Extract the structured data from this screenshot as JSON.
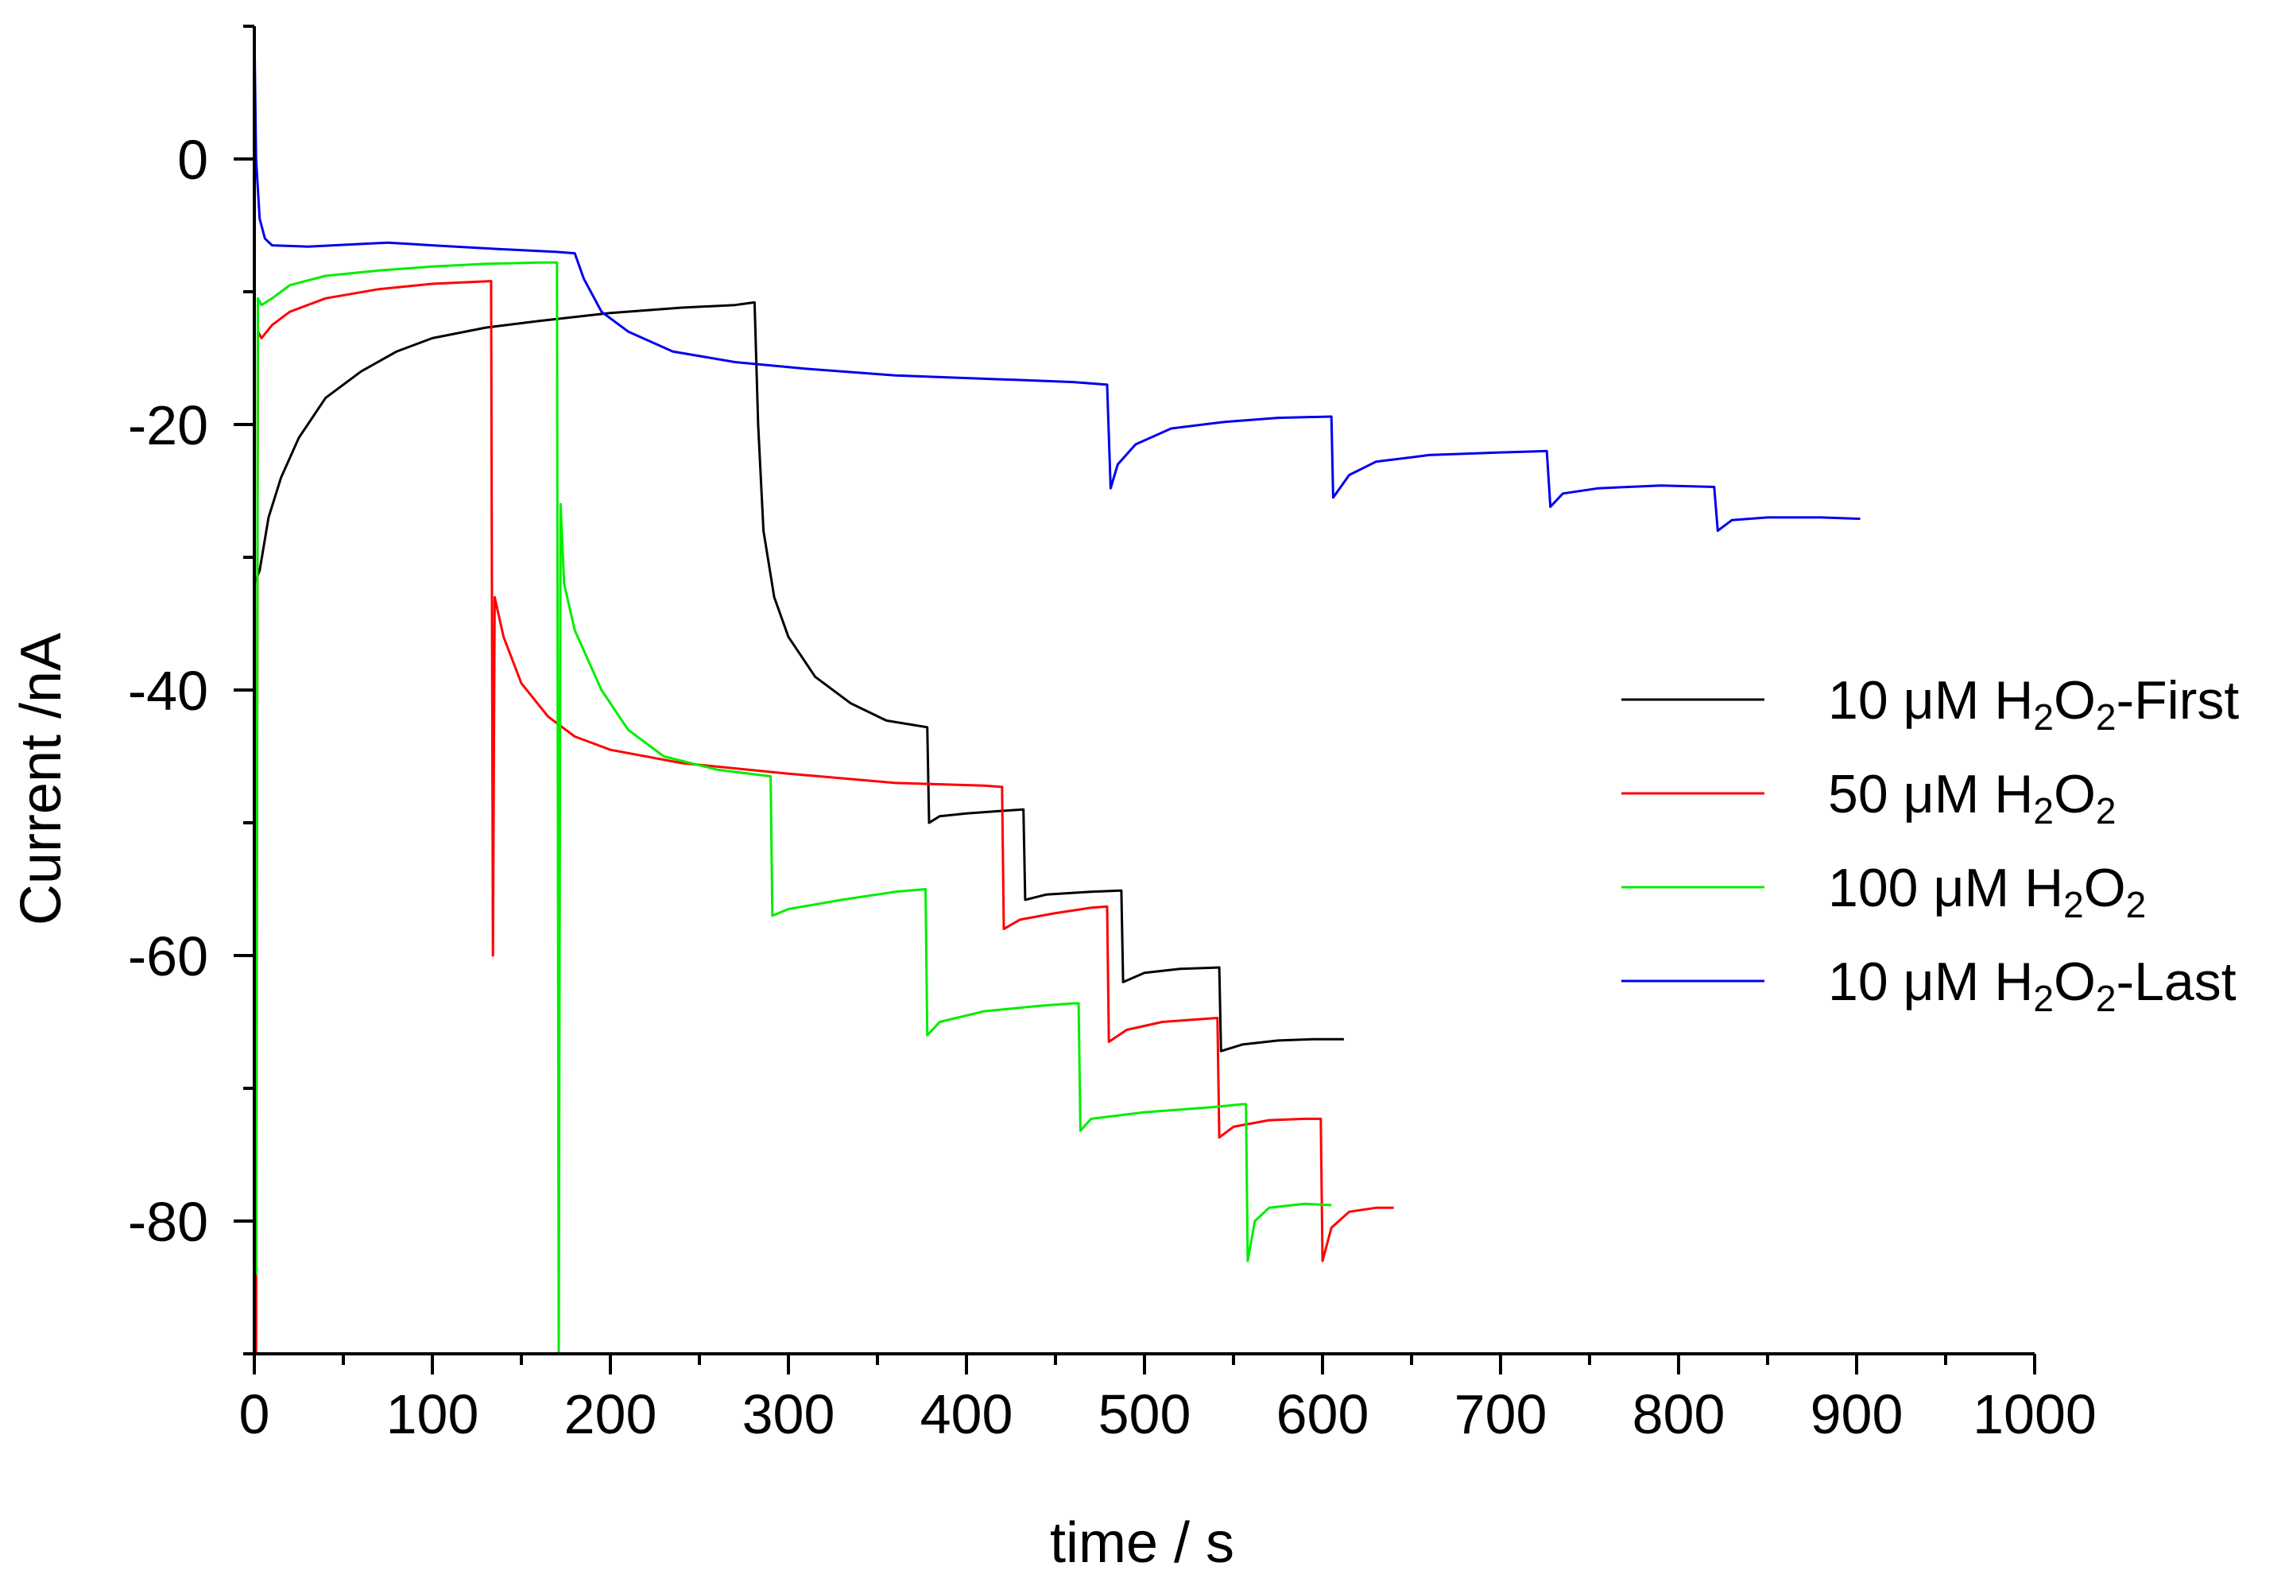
{
  "chart_data": {
    "type": "line",
    "title": "",
    "xlabel": "time / s",
    "ylabel": "Current /nA",
    "xlim": [
      0,
      1000
    ],
    "ylim": [
      -90,
      10
    ],
    "x_ticks": [
      0,
      100,
      200,
      300,
      400,
      500,
      600,
      700,
      800,
      900,
      1000
    ],
    "x_minor_step": 50,
    "y_ticks": [
      0,
      -20,
      -40,
      -60,
      -80
    ],
    "y_minor_step": 10,
    "grid": false,
    "legend_position": "right",
    "series": [
      {
        "name": "10 μM H2O2-First",
        "legend": {
          "a": "10 μM H",
          "s1": "2",
          "b": "O",
          "s2": "2",
          "c": "-First"
        },
        "color": "#000000",
        "points": [
          [
            0,
            -32
          ],
          [
            3,
            -31
          ],
          [
            8,
            -27
          ],
          [
            15,
            -24
          ],
          [
            25,
            -21
          ],
          [
            40,
            -18
          ],
          [
            60,
            -16
          ],
          [
            80,
            -14.5
          ],
          [
            100,
            -13.5
          ],
          [
            130,
            -12.7
          ],
          [
            160,
            -12.2
          ],
          [
            200,
            -11.6
          ],
          [
            240,
            -11.2
          ],
          [
            270,
            -11
          ],
          [
            281,
            -10.8
          ],
          [
            283,
            -20
          ],
          [
            286,
            -28
          ],
          [
            292,
            -33
          ],
          [
            300,
            -36
          ],
          [
            315,
            -39
          ],
          [
            335,
            -41
          ],
          [
            355,
            -42.3
          ],
          [
            378,
            -42.8
          ],
          [
            379,
            -50
          ],
          [
            385,
            -49.5
          ],
          [
            400,
            -49.3
          ],
          [
            420,
            -49.1
          ],
          [
            432,
            -49
          ],
          [
            433,
            -55.8
          ],
          [
            445,
            -55.4
          ],
          [
            470,
            -55.2
          ],
          [
            487,
            -55.1
          ],
          [
            488,
            -62
          ],
          [
            500,
            -61.3
          ],
          [
            520,
            -61
          ],
          [
            542,
            -60.9
          ],
          [
            543,
            -67.2
          ],
          [
            555,
            -66.7
          ],
          [
            575,
            -66.4
          ],
          [
            595,
            -66.3
          ],
          [
            612,
            -66.3
          ]
        ]
      },
      {
        "name": "50 μM H2O2",
        "legend": {
          "a": "50 μM H",
          "s1": "2",
          "b": "O",
          "s2": "2",
          "c": ""
        },
        "color": "#ff0000",
        "points": [
          [
            0,
            -84
          ],
          [
            1,
            -90
          ],
          [
            2,
            -13
          ],
          [
            4,
            -13.5
          ],
          [
            10,
            -12.5
          ],
          [
            20,
            -11.5
          ],
          [
            40,
            -10.5
          ],
          [
            70,
            -9.8
          ],
          [
            100,
            -9.4
          ],
          [
            133,
            -9.2
          ],
          [
            134,
            -60
          ],
          [
            135,
            -33
          ],
          [
            140,
            -36
          ],
          [
            150,
            -39.5
          ],
          [
            165,
            -42
          ],
          [
            180,
            -43.5
          ],
          [
            200,
            -44.5
          ],
          [
            240,
            -45.5
          ],
          [
            300,
            -46.3
          ],
          [
            360,
            -47
          ],
          [
            410,
            -47.2
          ],
          [
            420,
            -47.3
          ],
          [
            421,
            -58
          ],
          [
            430,
            -57.3
          ],
          [
            450,
            -56.8
          ],
          [
            470,
            -56.4
          ],
          [
            479,
            -56.3
          ],
          [
            480,
            -66.5
          ],
          [
            490,
            -65.6
          ],
          [
            510,
            -65
          ],
          [
            530,
            -64.8
          ],
          [
            541,
            -64.7
          ],
          [
            542,
            -73.7
          ],
          [
            550,
            -72.9
          ],
          [
            570,
            -72.4
          ],
          [
            590,
            -72.3
          ],
          [
            599,
            -72.3
          ],
          [
            600,
            -83
          ],
          [
            605,
            -80.5
          ],
          [
            615,
            -79.3
          ],
          [
            630,
            -79
          ],
          [
            640,
            -79
          ]
        ]
      },
      {
        "name": "100 μM H2O2",
        "legend": {
          "a": "100 μM H",
          "s1": "2",
          "b": "O",
          "s2": "2",
          "c": ""
        },
        "color": "#00ee00",
        "points": [
          [
            0,
            -27
          ],
          [
            1,
            -84
          ],
          [
            2,
            -10.5
          ],
          [
            4,
            -11
          ],
          [
            10,
            -10.5
          ],
          [
            20,
            -9.5
          ],
          [
            40,
            -8.8
          ],
          [
            70,
            -8.4
          ],
          [
            100,
            -8.1
          ],
          [
            130,
            -7.9
          ],
          [
            160,
            -7.8
          ],
          [
            170,
            -7.8
          ],
          [
            171,
            -90
          ],
          [
            172,
            -26
          ],
          [
            174,
            -32
          ],
          [
            180,
            -35.5
          ],
          [
            195,
            -40
          ],
          [
            210,
            -43
          ],
          [
            230,
            -45
          ],
          [
            260,
            -46
          ],
          [
            290,
            -46.5
          ],
          [
            291,
            -57
          ],
          [
            300,
            -56.5
          ],
          [
            330,
            -55.8
          ],
          [
            360,
            -55.2
          ],
          [
            377,
            -55
          ],
          [
            378,
            -66
          ],
          [
            385,
            -65
          ],
          [
            410,
            -64.2
          ],
          [
            440,
            -63.8
          ],
          [
            460,
            -63.6
          ],
          [
            463,
            -63.6
          ],
          [
            464,
            -73.2
          ],
          [
            470,
            -72.3
          ],
          [
            500,
            -71.8
          ],
          [
            540,
            -71.4
          ],
          [
            555,
            -71.2
          ],
          [
            557,
            -71.2
          ],
          [
            558,
            -83
          ],
          [
            562,
            -80
          ],
          [
            570,
            -79
          ],
          [
            590,
            -78.7
          ],
          [
            605,
            -78.8
          ]
        ]
      },
      {
        "name": "10 μM H2O2-Last",
        "legend": {
          "a": "10 μM H",
          "s1": "2",
          "b": "O",
          "s2": "2",
          "c": "-Last"
        },
        "color": "#0000ee",
        "points": [
          [
            0,
            10
          ],
          [
            1,
            0
          ],
          [
            3,
            -4.5
          ],
          [
            6,
            -6
          ],
          [
            10,
            -6.5
          ],
          [
            30,
            -6.6
          ],
          [
            60,
            -6.4
          ],
          [
            75,
            -6.3
          ],
          [
            100,
            -6.5
          ],
          [
            140,
            -6.8
          ],
          [
            170,
            -7
          ],
          [
            180,
            -7.1
          ],
          [
            185,
            -9
          ],
          [
            195,
            -11.5
          ],
          [
            210,
            -13
          ],
          [
            235,
            -14.5
          ],
          [
            270,
            -15.3
          ],
          [
            310,
            -15.8
          ],
          [
            360,
            -16.3
          ],
          [
            420,
            -16.6
          ],
          [
            460,
            -16.8
          ],
          [
            479,
            -17
          ],
          [
            481,
            -24.8
          ],
          [
            485,
            -23
          ],
          [
            495,
            -21.5
          ],
          [
            515,
            -20.3
          ],
          [
            545,
            -19.8
          ],
          [
            575,
            -19.5
          ],
          [
            605,
            -19.4
          ],
          [
            606,
            -25.5
          ],
          [
            615,
            -23.8
          ],
          [
            630,
            -22.8
          ],
          [
            660,
            -22.3
          ],
          [
            700,
            -22.1
          ],
          [
            726,
            -22
          ],
          [
            728,
            -26.2
          ],
          [
            735,
            -25.2
          ],
          [
            755,
            -24.8
          ],
          [
            790,
            -24.6
          ],
          [
            820,
            -24.7
          ],
          [
            822,
            -28
          ],
          [
            830,
            -27.2
          ],
          [
            850,
            -27
          ],
          [
            880,
            -27
          ],
          [
            902,
            -27.1
          ]
        ]
      }
    ]
  }
}
